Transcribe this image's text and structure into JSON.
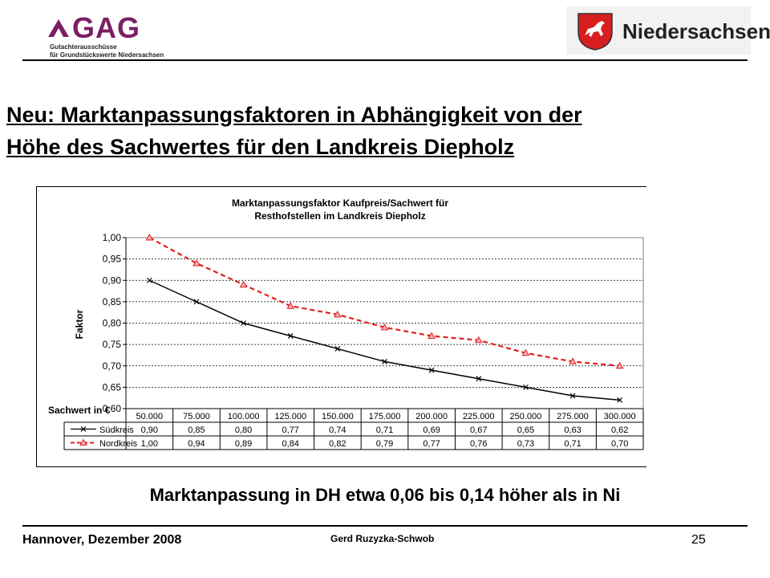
{
  "header": {
    "logo_gag": {
      "abbrev": "GAG",
      "line1": "Gutachterausschüsse",
      "line2": "für Grundstückswerte Niedersachsen"
    },
    "logo_nds": {
      "text": "Niedersachsen",
      "icon": "lower-saxony-horse-crest-icon"
    }
  },
  "title": {
    "line1": "Neu: Marktanpassungsfaktoren in Abhängigkeit von der",
    "line2": "Höhe des Sachwertes für den Landkreis Diepholz"
  },
  "chart_data": {
    "type": "line",
    "title": [
      "Marktanpassungsfaktor Kaufpreis/Sachwert für",
      "Resthofstellen im Landkreis Diepholz"
    ],
    "ylabel": "Faktor",
    "xlabel": "Sachwert in €",
    "ylim": [
      0.6,
      1.0
    ],
    "yticks": [
      "1,00",
      "0,95",
      "0,90",
      "0,85",
      "0,80",
      "0,75",
      "0,70",
      "0,65",
      "0,60"
    ],
    "categories": [
      "50.000",
      "75.000",
      "100.000",
      "125.000",
      "150.000",
      "175.000",
      "200.000",
      "225.000",
      "250.000",
      "275.000",
      "300.000"
    ],
    "series": [
      {
        "name": "Südkreis",
        "color": "#000000",
        "marker": "x",
        "dashed": false,
        "values": [
          0.9,
          0.85,
          0.8,
          0.77,
          0.74,
          0.71,
          0.69,
          0.67,
          0.65,
          0.63,
          0.62
        ],
        "labels": [
          "0,90",
          "0,85",
          "0,80",
          "0,77",
          "0,74",
          "0,71",
          "0,69",
          "0,67",
          "0,65",
          "0,63",
          "0,62"
        ]
      },
      {
        "name": "Nordkreis",
        "color": "#e02020",
        "marker": "triangle",
        "dashed": true,
        "values": [
          1.0,
          0.94,
          0.89,
          0.84,
          0.82,
          0.79,
          0.77,
          0.76,
          0.73,
          0.71,
          0.7
        ],
        "labels": [
          "1,00",
          "0,94",
          "0,89",
          "0,84",
          "0,82",
          "0,79",
          "0,77",
          "0,76",
          "0,73",
          "0,71",
          "0,70"
        ]
      }
    ],
    "grid": "horizontal dashed",
    "legend": "data table below chart"
  },
  "subtitle": "Marktanpassung in DH etwa 0,06 bis 0,14 höher als in Ni",
  "footer": {
    "left": "Hannover, Dezember 2008",
    "center": "Gerd Ruzyzka-Schwob",
    "page": "25"
  }
}
